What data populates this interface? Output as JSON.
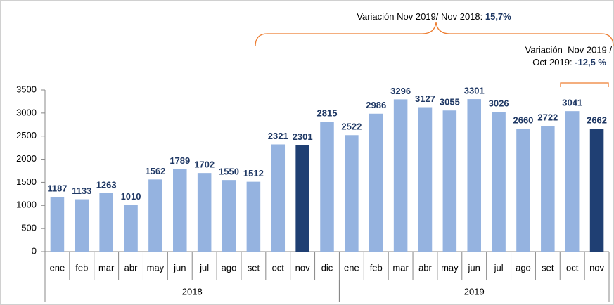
{
  "chart_data": {
    "type": "bar",
    "categories": [
      "ene",
      "feb",
      "mar",
      "abr",
      "may",
      "jun",
      "jul",
      "ago",
      "set",
      "oct",
      "nov",
      "dic",
      "ene",
      "feb",
      "mar",
      "abr",
      "may",
      "jun",
      "jul",
      "ago",
      "set",
      "oct",
      "nov"
    ],
    "values": [
      1187,
      1133,
      1263,
      1010,
      1562,
      1789,
      1702,
      1550,
      1512,
      2321,
      2301,
      2815,
      2522,
      2986,
      3296,
      3127,
      3055,
      3301,
      3026,
      2660,
      2722,
      3041,
      2662
    ],
    "colors": [
      "#95b3e0",
      "#95b3e0",
      "#95b3e0",
      "#95b3e0",
      "#95b3e0",
      "#95b3e0",
      "#95b3e0",
      "#95b3e0",
      "#95b3e0",
      "#95b3e0",
      "#1f3f73",
      "#95b3e0",
      "#95b3e0",
      "#95b3e0",
      "#95b3e0",
      "#95b3e0",
      "#95b3e0",
      "#95b3e0",
      "#95b3e0",
      "#95b3e0",
      "#95b3e0",
      "#95b3e0",
      "#1f3f73"
    ],
    "groups": [
      {
        "name": "2018",
        "count": 12
      },
      {
        "name": "2019",
        "count": 11
      }
    ],
    "ylim": [
      0,
      3500
    ],
    "yticks": [
      0,
      500,
      1000,
      1500,
      2000,
      2500,
      3000,
      3500
    ],
    "grid": false,
    "annotations": [
      {
        "text": "Variación Nov 2019/ Nov 2018: ",
        "value": "15,7%"
      },
      {
        "text": "Variación  Nov 2019 /",
        "text2": "Oct 2019: ",
        "value": "-12,5 %"
      }
    ]
  }
}
